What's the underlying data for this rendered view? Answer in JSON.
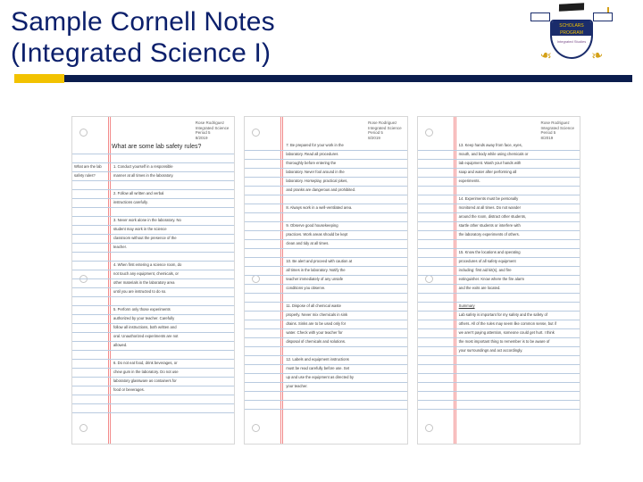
{
  "title_line1": "Sample Cornell Notes",
  "title_line2": "(Integrated Science I)",
  "colors": {
    "title": "#0b1f6b",
    "navy_bar": "#0b1d4d",
    "yellow_bar": "#f2c200",
    "rule_line": "#b9cbe0",
    "margin_line": "#f28a8a",
    "text": "#3a3a3a",
    "page_border": "#d7d7d7"
  },
  "logo": {
    "shield_top": "SCHOLARS PROGRAM",
    "shield_body": "Integrated Studies"
  },
  "page1": {
    "header": [
      "Rose Rodriguez",
      "Integrated Science",
      "Period 5",
      "8/2019"
    ],
    "big_question": "What are some lab safety rules?",
    "cues": [
      "What are the lab",
      "safety rules?"
    ],
    "notes": [
      "1. Conduct yourself in a responsible",
      "manner at all times in the laboratory.",
      "",
      "2. Follow all written and verbal",
      "instructions carefully.",
      "",
      "3. Never work alone in the laboratory. No",
      "student may work in the science",
      "classroom without the presence of the",
      "teacher.",
      "",
      "4. When first entering a science room, do",
      "not touch any equipment, chemicals, or",
      "other materials in the laboratory area",
      "until you are instructed to do so.",
      "",
      "5. Perform only those experiments",
      "authorized by your teacher. Carefully",
      "follow all instructions, both written and",
      "oral. Unauthorized experiments are not",
      "allowed.",
      "",
      "6. Do not eat food, drink beverages, or",
      "chew gum in the laboratory. Do not use",
      "laboratory glassware as containers for",
      "food or beverages."
    ]
  },
  "page2": {
    "header": [
      "Rose Rodriguez",
      "Integrated Science",
      "Period 5",
      "8/2019"
    ],
    "notes": [
      "7. Be prepared for your work in the",
      "laboratory. Read all procedures",
      "thoroughly before entering the",
      "laboratory. Never fool around in the",
      "laboratory. Horseplay, practical jokes,",
      "and pranks are dangerous and prohibited.",
      "",
      "8. Always work in a well-ventilated area.",
      "",
      "9. Observe good housekeeping",
      "practices. Work areas should be kept",
      "clean and tidy at all times.",
      "",
      "10. Be alert and proceed with caution at",
      "all times in the laboratory. Notify the",
      "teacher immediately of any unsafe",
      "conditions you observe.",
      "",
      "11. Dispose of all chemical waste",
      "properly. Never mix chemicals in sink",
      "drains. Sinks are to be used only for",
      "water. Check with your teacher for",
      "disposal of chemicals and solutions.",
      "",
      "12. Labels and equipment instructions",
      "must be read carefully before use. Set",
      "up and use the equipment as directed by",
      "your teacher."
    ]
  },
  "page3": {
    "header": [
      "Rose Rodriguez",
      "Integrated Science",
      "Period 5",
      "8/2019"
    ],
    "notes": [
      "13. Keep hands away from face, eyes,",
      "mouth, and body while using chemicals or",
      "lab equipment. Wash your hands with",
      "soap and water after performing all",
      "experiments.",
      "",
      "14. Experiments must be personally",
      "monitored at all times. Do not wander",
      "around the room, distract other students,",
      "startle other students or interfere with",
      "the laboratory experiments of others.",
      "",
      "15. Know the locations and operating",
      "procedures of all safety equipment",
      "including: first aid kit(s), and fire",
      "extinguisher. Know where the fire alarm",
      "and the exits are located.",
      ""
    ],
    "summary_title": "Summary",
    "summary": [
      "Lab safety is important for my safety and the safety of",
      "others. All of the rules may seem like common sense, but if",
      "we aren't paying attention, someone could get hurt. I think",
      "the most important thing to remember is to be aware of",
      "your surroundings and act accordingly."
    ]
  }
}
